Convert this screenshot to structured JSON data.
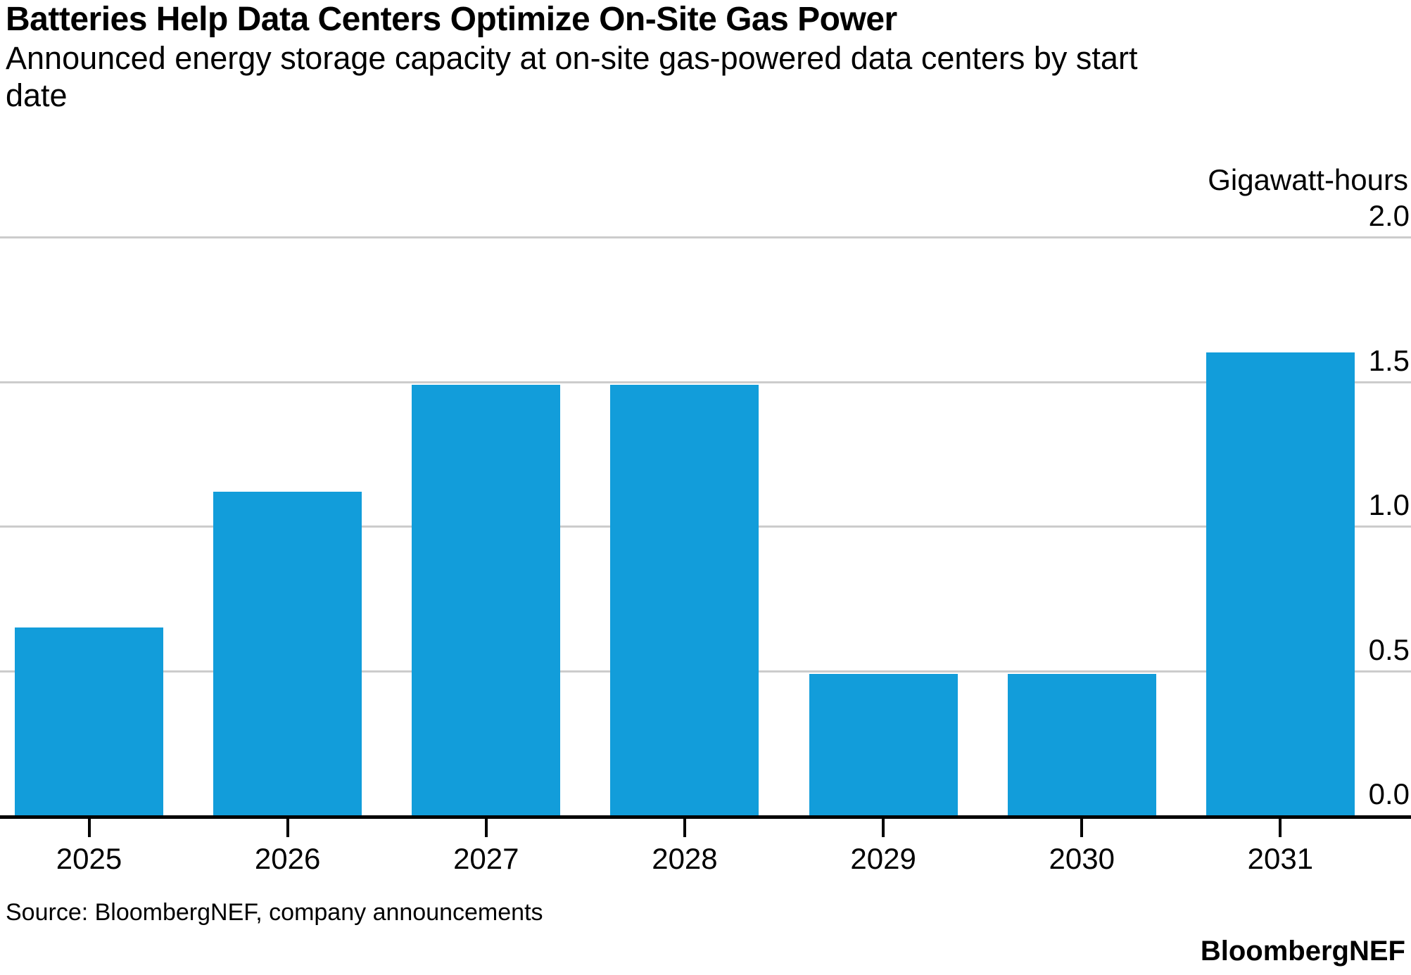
{
  "chart_data": {
    "type": "bar",
    "title": "Batteries Help Data Centers Optimize On-Site Gas Power",
    "subtitle": "Announced energy storage capacity at on-site gas-powered data centers by start\ndate",
    "unit_label": "Gigawatt-hours",
    "categories": [
      "2025",
      "2026",
      "2027",
      "2028",
      "2029",
      "2030",
      "2031"
    ],
    "values": [
      0.65,
      1.12,
      1.49,
      1.49,
      0.49,
      0.49,
      1.6
    ],
    "xlabel": "",
    "ylabel": "Gigawatt-hours",
    "ylim": [
      0,
      2.0
    ],
    "yticks": [
      0,
      0.5,
      1.0,
      1.5,
      2.0
    ],
    "ytick_labels": [
      "0.0",
      "0.5",
      "1.0",
      "1.5",
      "2.0"
    ],
    "grid": "horizontal gridlines on, labels above lines at right edge",
    "legend": "none",
    "bar_color": "#129DDA",
    "gridline_color": "#CCCCCC",
    "axis_color": "#000000",
    "source": "Source: BloombergNEF, company announcements",
    "brand": "BloombergNEF"
  }
}
